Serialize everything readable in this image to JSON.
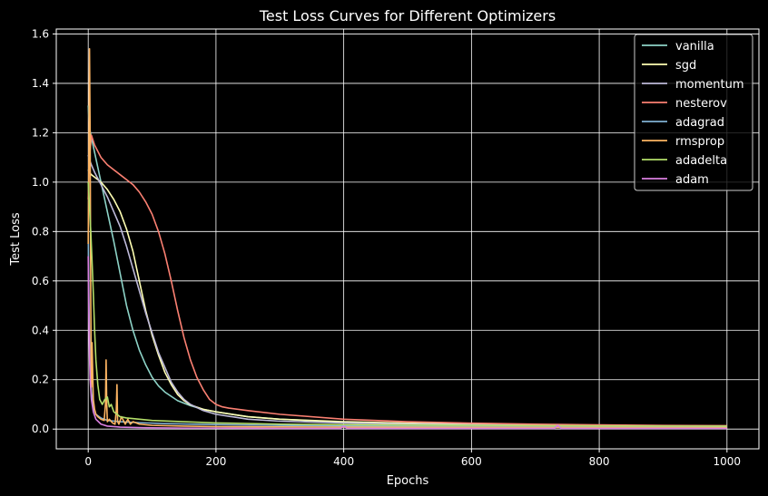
{
  "chart_data": {
    "type": "line",
    "title": "Test Loss Curves for Different Optimizers",
    "xlabel": "Epochs",
    "ylabel": "Test Loss",
    "xlim": [
      -50,
      1050
    ],
    "ylim": [
      -0.08,
      1.62
    ],
    "xticks": [
      0,
      200,
      400,
      600,
      800,
      1000
    ],
    "xtick_labels": [
      "0",
      "200",
      "400",
      "600",
      "800",
      "1000"
    ],
    "yticks": [
      0.0,
      0.2,
      0.4,
      0.6,
      0.8,
      1.0,
      1.2,
      1.4,
      1.6
    ],
    "ytick_labels": [
      "0.0",
      "0.2",
      "0.4",
      "0.6",
      "0.8",
      "1.0",
      "1.2",
      "1.4",
      "1.6"
    ],
    "grid": true,
    "legend_position": "top-right",
    "series": [
      {
        "name": "vanilla",
        "color": "#8dd3c7",
        "x": [
          0,
          2,
          5,
          10,
          20,
          30,
          40,
          50,
          60,
          70,
          80,
          90,
          100,
          110,
          120,
          140,
          160,
          180,
          200,
          250,
          300,
          400,
          500,
          600,
          700,
          800,
          900,
          1000
        ],
        "y": [
          1.31,
          1.22,
          1.18,
          1.12,
          1.0,
          0.88,
          0.76,
          0.63,
          0.5,
          0.4,
          0.32,
          0.26,
          0.21,
          0.175,
          0.15,
          0.115,
          0.095,
          0.08,
          0.07,
          0.05,
          0.04,
          0.028,
          0.022,
          0.018,
          0.015,
          0.013,
          0.012,
          0.011
        ]
      },
      {
        "name": "sgd",
        "color": "#ffffb3",
        "x": [
          0,
          2,
          5,
          10,
          20,
          30,
          40,
          50,
          60,
          70,
          80,
          90,
          100,
          110,
          120,
          130,
          140,
          150,
          160,
          180,
          200,
          250,
          300,
          400,
          500,
          600,
          700,
          800,
          900,
          1000
        ],
        "y": [
          1.05,
          1.04,
          1.03,
          1.02,
          1.0,
          0.97,
          0.93,
          0.88,
          0.81,
          0.72,
          0.6,
          0.48,
          0.38,
          0.3,
          0.23,
          0.18,
          0.14,
          0.115,
          0.098,
          0.08,
          0.07,
          0.05,
          0.04,
          0.03,
          0.024,
          0.02,
          0.017,
          0.015,
          0.013,
          0.012
        ]
      },
      {
        "name": "momentum",
        "color": "#bebada",
        "x": [
          0,
          2,
          5,
          10,
          20,
          30,
          40,
          50,
          60,
          70,
          80,
          90,
          100,
          110,
          120,
          130,
          140,
          150,
          160,
          180,
          200,
          250,
          300,
          400,
          500,
          600,
          700,
          800,
          900,
          1000
        ],
        "y": [
          1.11,
          1.09,
          1.07,
          1.04,
          0.99,
          0.94,
          0.88,
          0.82,
          0.74,
          0.65,
          0.56,
          0.47,
          0.39,
          0.31,
          0.25,
          0.19,
          0.15,
          0.12,
          0.1,
          0.075,
          0.06,
          0.04,
          0.032,
          0.025,
          0.02,
          0.017,
          0.015,
          0.013,
          0.012,
          0.011
        ]
      },
      {
        "name": "nesterov",
        "color": "#fb8072",
        "x": [
          0,
          2,
          5,
          10,
          20,
          30,
          40,
          50,
          60,
          70,
          80,
          90,
          100,
          110,
          120,
          130,
          140,
          150,
          160,
          170,
          180,
          190,
          200,
          210,
          220,
          250,
          300,
          400,
          500,
          600,
          700,
          800,
          900,
          1000
        ],
        "y": [
          0.93,
          1.1,
          1.19,
          1.15,
          1.1,
          1.07,
          1.05,
          1.03,
          1.01,
          0.99,
          0.96,
          0.92,
          0.87,
          0.8,
          0.71,
          0.6,
          0.48,
          0.37,
          0.28,
          0.21,
          0.16,
          0.12,
          0.1,
          0.09,
          0.085,
          0.075,
          0.06,
          0.04,
          0.03,
          0.024,
          0.02,
          0.017,
          0.015,
          0.014
        ]
      },
      {
        "name": "adagrad",
        "color": "#80b1d3",
        "x": [
          0,
          1,
          2,
          3,
          5,
          8,
          12,
          20,
          30,
          50,
          80,
          120,
          200,
          300,
          400,
          600,
          800,
          1000
        ],
        "y": [
          0.8,
          0.55,
          0.35,
          0.25,
          0.15,
          0.09,
          0.06,
          0.045,
          0.035,
          0.03,
          0.026,
          0.022,
          0.018,
          0.015,
          0.013,
          0.011,
          0.01,
          0.009
        ]
      },
      {
        "name": "rmsprop",
        "color": "#fdb462",
        "x": [
          0,
          1,
          2,
          3,
          4,
          5,
          6,
          8,
          10,
          12,
          15,
          20,
          25,
          27,
          28,
          29,
          30,
          33,
          38,
          42,
          44,
          45,
          46,
          48,
          52,
          58,
          62,
          66,
          70,
          80,
          100,
          150,
          200,
          300,
          400,
          600,
          800,
          1000
        ],
        "y": [
          0.75,
          1.1,
          1.54,
          1.2,
          0.5,
          0.17,
          0.35,
          0.12,
          0.08,
          0.06,
          0.05,
          0.04,
          0.035,
          0.1,
          0.28,
          0.1,
          0.03,
          0.04,
          0.025,
          0.02,
          0.08,
          0.18,
          0.03,
          0.02,
          0.05,
          0.02,
          0.04,
          0.02,
          0.03,
          0.02,
          0.015,
          0.012,
          0.01,
          0.009,
          0.008,
          0.007,
          0.006,
          0.006
        ]
      },
      {
        "name": "adadelta",
        "color": "#b3de69",
        "x": [
          0,
          2,
          4,
          6,
          8,
          10,
          12,
          15,
          18,
          22,
          26,
          30,
          33,
          36,
          40,
          45,
          50,
          60,
          80,
          100,
          150,
          200,
          300,
          400,
          600,
          800,
          1000
        ],
        "y": [
          1.0,
          0.9,
          0.8,
          0.68,
          0.55,
          0.4,
          0.28,
          0.18,
          0.12,
          0.1,
          0.12,
          0.13,
          0.09,
          0.1,
          0.07,
          0.06,
          0.05,
          0.045,
          0.04,
          0.035,
          0.03,
          0.025,
          0.02,
          0.018,
          0.015,
          0.013,
          0.012
        ]
      },
      {
        "name": "adam",
        "color": "#d97fe0",
        "x": [
          0,
          1,
          2,
          3,
          5,
          8,
          12,
          20,
          30,
          50,
          80,
          100,
          150,
          200,
          300,
          395,
          400,
          405,
          500,
          600,
          730,
          735,
          740,
          800,
          900,
          1000
        ],
        "y": [
          0.7,
          0.45,
          0.3,
          0.2,
          0.12,
          0.07,
          0.04,
          0.02,
          0.012,
          0.008,
          0.006,
          0.005,
          0.004,
          0.004,
          0.003,
          0.003,
          0.012,
          0.003,
          0.003,
          0.003,
          0.003,
          0.015,
          0.003,
          0.003,
          0.003,
          0.003
        ]
      }
    ]
  }
}
